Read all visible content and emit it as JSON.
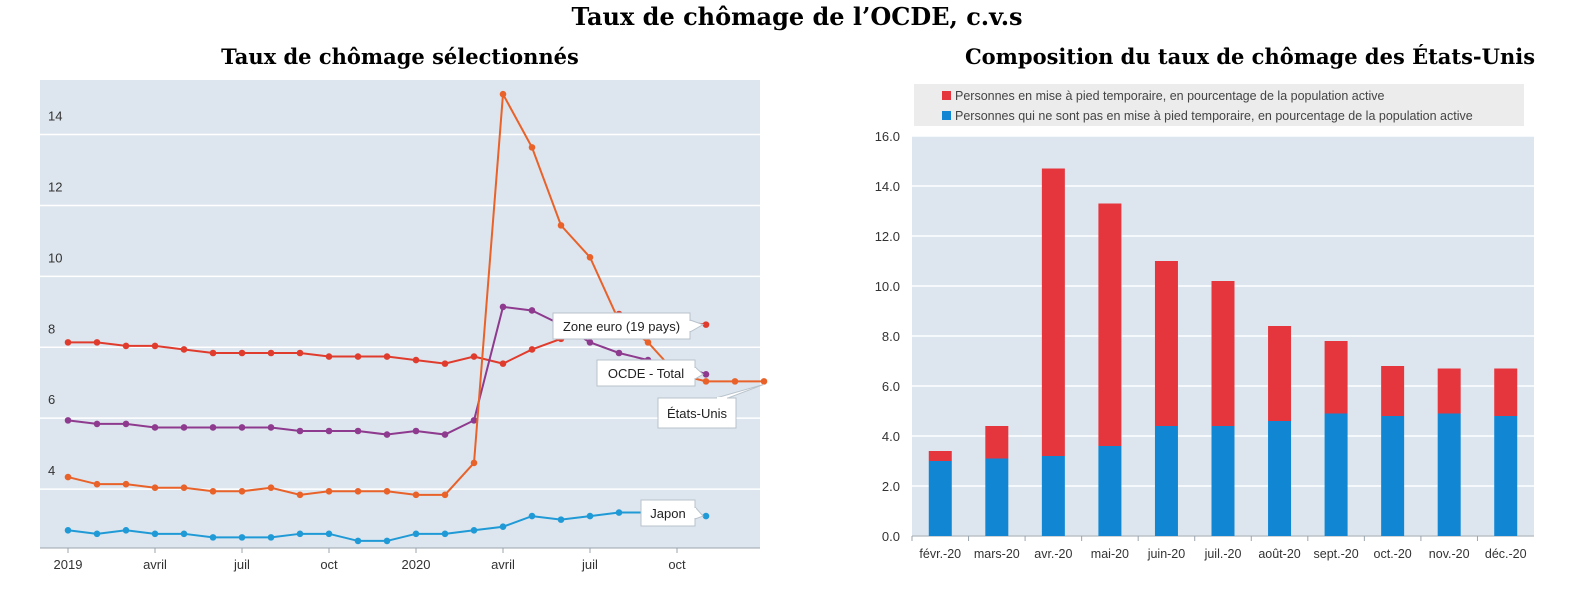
{
  "title": "Taux de chômage de l’OCDE, c.v.s",
  "chart_data": [
    {
      "type": "line",
      "title": "Taux de chômage sélectionnés",
      "y_ticks": [
        4,
        6,
        8,
        10,
        12,
        14
      ],
      "ylim": [
        2.0,
        15.2
      ],
      "x_ticks": [
        {
          "label": "2019",
          "index": 0
        },
        {
          "label": "avril",
          "index": 3
        },
        {
          "label": "juil",
          "index": 6
        },
        {
          "label": "oct",
          "index": 9
        },
        {
          "label": "2020",
          "index": 12
        },
        {
          "label": "avril",
          "index": 15
        },
        {
          "label": "juil",
          "index": 18
        },
        {
          "label": "oct",
          "index": 21
        }
      ],
      "n_points": 25,
      "grid": true,
      "series": [
        {
          "name": "Zone euro (19 pays)",
          "color": "#e03c2e",
          "values": [
            7.8,
            7.8,
            7.7,
            7.7,
            7.6,
            7.5,
            7.5,
            7.5,
            7.5,
            7.4,
            7.4,
            7.4,
            7.3,
            7.2,
            7.4,
            7.2,
            7.6,
            7.9,
            8.3,
            8.6,
            8.5,
            8.4,
            8.3
          ]
        },
        {
          "name": "OCDE - Total",
          "color": "#8e3a8e",
          "values": [
            5.6,
            5.5,
            5.5,
            5.4,
            5.4,
            5.4,
            5.4,
            5.4,
            5.3,
            5.3,
            5.3,
            5.2,
            5.3,
            5.2,
            5.6,
            8.8,
            8.7,
            8.3,
            7.8,
            7.5,
            7.3,
            7.2,
            6.9
          ]
        },
        {
          "name": "États-Unis",
          "color": "#e8622a",
          "values": [
            4.0,
            3.8,
            3.8,
            3.7,
            3.7,
            3.6,
            3.6,
            3.7,
            3.5,
            3.6,
            3.6,
            3.6,
            3.5,
            3.5,
            4.4,
            14.8,
            13.3,
            11.1,
            10.2,
            8.4,
            7.8,
            6.9,
            6.7,
            6.7,
            6.7
          ]
        },
        {
          "name": "Japon",
          "color": "#1f9ad6",
          "values": [
            2.5,
            2.4,
            2.5,
            2.4,
            2.4,
            2.3,
            2.3,
            2.3,
            2.4,
            2.4,
            2.2,
            2.2,
            2.4,
            2.4,
            2.5,
            2.6,
            2.9,
            2.8,
            2.9,
            3.0,
            3.0,
            3.0,
            2.9
          ]
        }
      ]
    },
    {
      "type": "bar",
      "stacked": true,
      "title": "Composition du taux de chômage des États-Unis",
      "categories": [
        "févr.-20",
        "mars-20",
        "avr.-20",
        "mai-20",
        "juin-20",
        "juil.-20",
        "août-20",
        "sept.-20",
        "oct.-20",
        "nov.-20",
        "déc.-20"
      ],
      "ylim": [
        0,
        16
      ],
      "y_ticks": [
        "0.0",
        "2.0",
        "4.0",
        "6.0",
        "8.0",
        "10.0",
        "12.0",
        "14.0",
        "16.0"
      ],
      "legend_position": "top",
      "grid": true,
      "series": [
        {
          "name": "Personnes qui ne sont pas en mise à pied temporaire, en pourcentage de la population active",
          "color": "#1187d4",
          "values": [
            3.0,
            3.1,
            3.2,
            3.6,
            4.4,
            4.4,
            4.6,
            4.9,
            4.8,
            4.9,
            4.8
          ]
        },
        {
          "name": "Personnes en mise à pied temporaire, en pourcentage de la population active",
          "color": "#e5363e",
          "values": [
            0.4,
            1.3,
            11.5,
            9.7,
            6.6,
            5.8,
            3.8,
            2.9,
            2.0,
            1.8,
            1.9
          ]
        }
      ]
    }
  ]
}
